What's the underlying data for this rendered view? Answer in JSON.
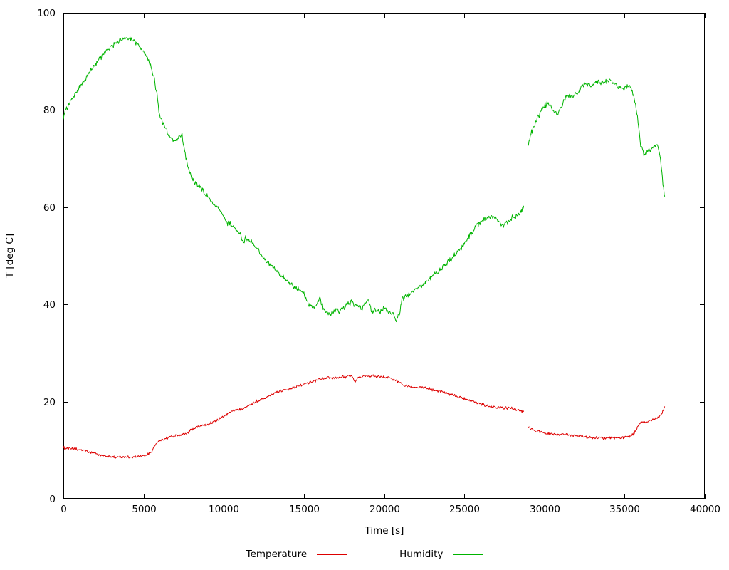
{
  "chart_data": {
    "type": "line",
    "title": "",
    "xlabel": "Time [s]",
    "ylabel": "T [deg C]",
    "xlim": [
      0,
      40000
    ],
    "ylim": [
      0,
      100
    ],
    "xticks": [
      0,
      5000,
      10000,
      15000,
      20000,
      25000,
      30000,
      35000,
      40000
    ],
    "yticks": [
      0,
      20,
      40,
      60,
      80,
      100
    ],
    "grid": false,
    "legend_position": "bottom-center",
    "series": [
      {
        "name": "Temperature",
        "color": "#dd0000",
        "noise": 0.35,
        "segments": [
          [
            [
              0,
              10.5
            ],
            [
              400,
              10.3
            ],
            [
              800,
              10.2
            ],
            [
              1200,
              10.0
            ],
            [
              1600,
              9.6
            ],
            [
              2000,
              9.3
            ],
            [
              2400,
              8.9
            ],
            [
              2800,
              8.7
            ],
            [
              3200,
              8.6
            ],
            [
              3600,
              8.6
            ],
            [
              4000,
              8.6
            ],
            [
              4400,
              8.6
            ],
            [
              4800,
              8.7
            ],
            [
              5200,
              9.0
            ],
            [
              5500,
              9.6
            ],
            [
              5700,
              11.0
            ],
            [
              6000,
              12.0
            ],
            [
              6400,
              12.4
            ],
            [
              6800,
              12.9
            ],
            [
              7200,
              13.1
            ],
            [
              7600,
              13.3
            ],
            [
              8000,
              14.2
            ],
            [
              8400,
              14.8
            ],
            [
              8800,
              15.2
            ],
            [
              9200,
              15.6
            ],
            [
              9600,
              16.2
            ],
            [
              10000,
              17.0
            ],
            [
              10400,
              17.8
            ],
            [
              10800,
              18.3
            ],
            [
              11200,
              18.7
            ],
            [
              11600,
              19.3
            ],
            [
              12000,
              20.0
            ],
            [
              12400,
              20.5
            ],
            [
              12800,
              21.2
            ],
            [
              13200,
              21.8
            ],
            [
              13600,
              22.2
            ],
            [
              14000,
              22.6
            ],
            [
              14400,
              23.0
            ],
            [
              14800,
              23.4
            ],
            [
              15200,
              23.8
            ],
            [
              15600,
              24.2
            ],
            [
              16000,
              24.6
            ],
            [
              16400,
              24.9
            ],
            [
              16800,
              24.7
            ],
            [
              17200,
              25.0
            ],
            [
              17600,
              25.1
            ],
            [
              18000,
              25.2
            ],
            [
              18200,
              24.0
            ],
            [
              18400,
              25.0
            ],
            [
              18800,
              25.2
            ],
            [
              19200,
              25.3
            ],
            [
              19600,
              25.1
            ],
            [
              20000,
              25.1
            ],
            [
              20400,
              24.8
            ],
            [
              20800,
              24.2
            ],
            [
              21200,
              23.4
            ],
            [
              21600,
              23.1
            ],
            [
              22000,
              23.0
            ],
            [
              22400,
              22.9
            ],
            [
              22800,
              22.6
            ],
            [
              23200,
              22.3
            ],
            [
              23600,
              22.0
            ],
            [
              24000,
              21.6
            ],
            [
              24400,
              21.2
            ],
            [
              24800,
              20.8
            ],
            [
              25200,
              20.3
            ],
            [
              25600,
              19.9
            ],
            [
              26000,
              19.5
            ],
            [
              26400,
              19.1
            ],
            [
              26800,
              18.9
            ],
            [
              27200,
              18.8
            ],
            [
              27600,
              18.7
            ],
            [
              28000,
              18.6
            ],
            [
              28400,
              18.3
            ],
            [
              28700,
              17.9
            ]
          ],
          [
            [
              29000,
              14.6
            ],
            [
              29400,
              14.1
            ],
            [
              29800,
              13.7
            ],
            [
              30200,
              13.4
            ],
            [
              30600,
              13.3
            ],
            [
              31000,
              13.2
            ],
            [
              31400,
              13.1
            ],
            [
              31800,
              13.0
            ],
            [
              32200,
              12.9
            ],
            [
              32600,
              12.7
            ],
            [
              33000,
              12.6
            ],
            [
              33400,
              12.5
            ],
            [
              33800,
              12.5
            ],
            [
              34200,
              12.5
            ],
            [
              34600,
              12.5
            ],
            [
              35000,
              12.7
            ],
            [
              35400,
              12.9
            ],
            [
              35600,
              13.5
            ],
            [
              35800,
              14.8
            ],
            [
              36000,
              15.6
            ],
            [
              36400,
              15.9
            ],
            [
              36800,
              16.3
            ],
            [
              37100,
              16.6
            ],
            [
              37300,
              17.3
            ],
            [
              37500,
              19.0
            ]
          ]
        ]
      },
      {
        "name": "Humidity",
        "color": "#00b400",
        "noise": 0.7,
        "segments": [
          [
            [
              0,
              78.5
            ],
            [
              200,
              80.5
            ],
            [
              400,
              81.5
            ],
            [
              600,
              82.5
            ],
            [
              800,
              83.5
            ],
            [
              1000,
              84.5
            ],
            [
              1200,
              85.5
            ],
            [
              1400,
              86.5
            ],
            [
              1600,
              87.5
            ],
            [
              1800,
              88.5
            ],
            [
              2000,
              89.5
            ],
            [
              2200,
              90.3
            ],
            [
              2400,
              91.0
            ],
            [
              2600,
              91.8
            ],
            [
              2800,
              92.5
            ],
            [
              3000,
              93.0
            ],
            [
              3200,
              93.5
            ],
            [
              3400,
              94.0
            ],
            [
              3600,
              94.3
            ],
            [
              3800,
              94.5
            ],
            [
              4000,
              94.5
            ],
            [
              4200,
              94.5
            ],
            [
              4400,
              94.2
            ],
            [
              4600,
              93.6
            ],
            [
              4800,
              93.0
            ],
            [
              5000,
              92.0
            ],
            [
              5200,
              90.8
            ],
            [
              5400,
              89.5
            ],
            [
              5600,
              87.5
            ],
            [
              5800,
              84.0
            ],
            [
              6000,
              79.0
            ],
            [
              6200,
              77.5
            ],
            [
              6400,
              76.0
            ],
            [
              6600,
              74.8
            ],
            [
              6800,
              74.0
            ],
            [
              7000,
              73.5
            ],
            [
              7200,
              74.2
            ],
            [
              7400,
              75.0
            ],
            [
              7600,
              71.0
            ],
            [
              7800,
              68.0
            ],
            [
              8000,
              66.0
            ],
            [
              8200,
              65.0
            ],
            [
              8400,
              64.5
            ],
            [
              8600,
              64.0
            ],
            [
              8800,
              63.0
            ],
            [
              9000,
              62.0
            ],
            [
              9200,
              61.2
            ],
            [
              9400,
              60.4
            ],
            [
              9600,
              60.0
            ],
            [
              9800,
              59.4
            ],
            [
              10000,
              58.0
            ],
            [
              10200,
              56.8
            ],
            [
              10400,
              56.5
            ],
            [
              10600,
              56.0
            ],
            [
              10800,
              55.3
            ],
            [
              11000,
              54.5
            ],
            [
              11200,
              53.0
            ],
            [
              11400,
              53.7
            ],
            [
              11600,
              53.3
            ],
            [
              11800,
              52.7
            ],
            [
              12000,
              51.7
            ],
            [
              12200,
              51.0
            ],
            [
              12400,
              49.8
            ],
            [
              12600,
              49.2
            ],
            [
              12800,
              48.5
            ],
            [
              13000,
              47.7
            ],
            [
              13200,
              47.2
            ],
            [
              13400,
              46.3
            ],
            [
              13600,
              45.8
            ],
            [
              13800,
              45.2
            ],
            [
              14000,
              44.6
            ],
            [
              14200,
              44.1
            ],
            [
              14400,
              43.6
            ],
            [
              14600,
              43.2
            ],
            [
              14800,
              42.8
            ],
            [
              15000,
              42.3
            ],
            [
              15200,
              40.5
            ],
            [
              15400,
              40.0
            ],
            [
              15600,
              39.6
            ],
            [
              15800,
              40.0
            ],
            [
              16000,
              41.5
            ],
            [
              16200,
              39.0
            ],
            [
              16400,
              38.2
            ],
            [
              16600,
              38.0
            ],
            [
              16800,
              38.6
            ],
            [
              17000,
              39.0
            ],
            [
              17200,
              38.4
            ],
            [
              17400,
              39.0
            ],
            [
              17600,
              39.6
            ],
            [
              17800,
              40.0
            ],
            [
              18000,
              40.4
            ],
            [
              18200,
              40.0
            ],
            [
              18400,
              39.6
            ],
            [
              18600,
              39.3
            ],
            [
              18800,
              40.0
            ],
            [
              19000,
              41.0
            ],
            [
              19200,
              38.6
            ],
            [
              19400,
              39.0
            ],
            [
              19600,
              38.6
            ],
            [
              19800,
              38.4
            ],
            [
              20000,
              39.4
            ],
            [
              20200,
              38.6
            ],
            [
              20400,
              38.2
            ],
            [
              20600,
              37.6
            ],
            [
              20800,
              36.8
            ],
            [
              21000,
              38.5
            ],
            [
              21100,
              41.0
            ],
            [
              21300,
              41.6
            ],
            [
              21500,
              42.0
            ],
            [
              21700,
              42.5
            ],
            [
              22000,
              43.2
            ],
            [
              22300,
              43.8
            ],
            [
              22600,
              44.6
            ],
            [
              22900,
              45.4
            ],
            [
              23200,
              46.4
            ],
            [
              23500,
              47.0
            ],
            [
              23800,
              48.2
            ],
            [
              24100,
              49.2
            ],
            [
              24400,
              50.2
            ],
            [
              24700,
              51.2
            ],
            [
              25000,
              52.5
            ],
            [
              25300,
              54.0
            ],
            [
              25600,
              55.4
            ],
            [
              25900,
              56.8
            ],
            [
              26200,
              57.4
            ],
            [
              26500,
              57.8
            ],
            [
              26800,
              57.9
            ],
            [
              27100,
              57.3
            ],
            [
              27400,
              56.3
            ],
            [
              27700,
              57.0
            ],
            [
              28000,
              57.8
            ],
            [
              28300,
              58.3
            ],
            [
              28600,
              59.6
            ],
            [
              28700,
              60.3
            ]
          ],
          [
            [
              29000,
              72.8
            ],
            [
              29200,
              75.5
            ],
            [
              29400,
              77.0
            ],
            [
              29600,
              78.5
            ],
            [
              29800,
              79.8
            ],
            [
              30000,
              80.8
            ],
            [
              30200,
              81.3
            ],
            [
              30400,
              80.8
            ],
            [
              30600,
              79.5
            ],
            [
              30800,
              79.3
            ],
            [
              31000,
              80.3
            ],
            [
              31200,
              82.0
            ],
            [
              31400,
              82.8
            ],
            [
              31600,
              83.0
            ],
            [
              31800,
              83.0
            ],
            [
              32000,
              83.4
            ],
            [
              32200,
              84.0
            ],
            [
              32400,
              85.3
            ],
            [
              32600,
              85.6
            ],
            [
              32800,
              85.2
            ],
            [
              33000,
              84.9
            ],
            [
              33200,
              85.3
            ],
            [
              33400,
              85.8
            ],
            [
              33600,
              85.6
            ],
            [
              33800,
              85.8
            ],
            [
              34000,
              86.0
            ],
            [
              34200,
              86.0
            ],
            [
              34400,
              85.2
            ],
            [
              34600,
              84.8
            ],
            [
              34800,
              84.6
            ],
            [
              35000,
              84.6
            ],
            [
              35200,
              85.0
            ],
            [
              35400,
              84.4
            ],
            [
              35600,
              82.5
            ],
            [
              35800,
              78.5
            ],
            [
              36000,
              72.8
            ],
            [
              36200,
              70.8
            ],
            [
              36400,
              71.4
            ],
            [
              36600,
              71.8
            ],
            [
              36800,
              72.3
            ],
            [
              37000,
              73.0
            ],
            [
              37200,
              70.5
            ],
            [
              37350,
              66.0
            ],
            [
              37500,
              62.2
            ]
          ]
        ]
      }
    ]
  }
}
